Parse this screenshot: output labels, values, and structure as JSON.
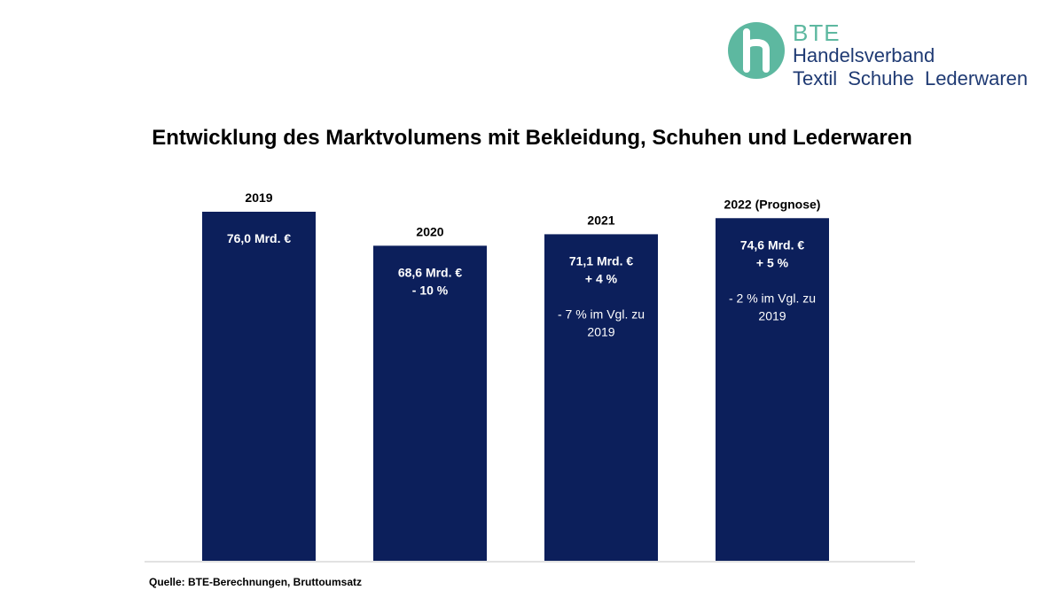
{
  "logo": {
    "abbr": "BTE",
    "line2": "Handelsverband",
    "line3": "Textil Schuhe Lederwaren",
    "colors": {
      "teal": "#5db8a0",
      "navy": "#1f3a73"
    }
  },
  "title": "Entwicklung des Marktvolumens mit Bekleidung, Schuhen und Lederwaren",
  "source": "Quelle: BTE-Berechnungen, Bruttoumsatz",
  "chart_data": {
    "type": "bar",
    "title": "Entwicklung des Marktvolumens mit Bekleidung, Schuhen und Lederwaren",
    "categories": [
      "2019",
      "2020",
      "2021",
      "2022 (Prognose)"
    ],
    "values": [
      76.0,
      68.6,
      71.1,
      74.6
    ],
    "unit": "Mrd. €",
    "bar_color": "#0c1f5b",
    "ylim": [
      0,
      76.0
    ],
    "grid": false,
    "annotations": [
      [
        "76,0 Mrd. €"
      ],
      [
        "68,6 Mrd. €",
        "- 10 %"
      ],
      [
        "71,1 Mrd. €",
        "+ 4 %",
        "",
        "- 7 % im Vgl. zu",
        "2019"
      ],
      [
        "74,6 Mrd. €",
        "+ 5  %",
        "",
        "- 2 % im Vgl. zu",
        "2019"
      ]
    ]
  }
}
